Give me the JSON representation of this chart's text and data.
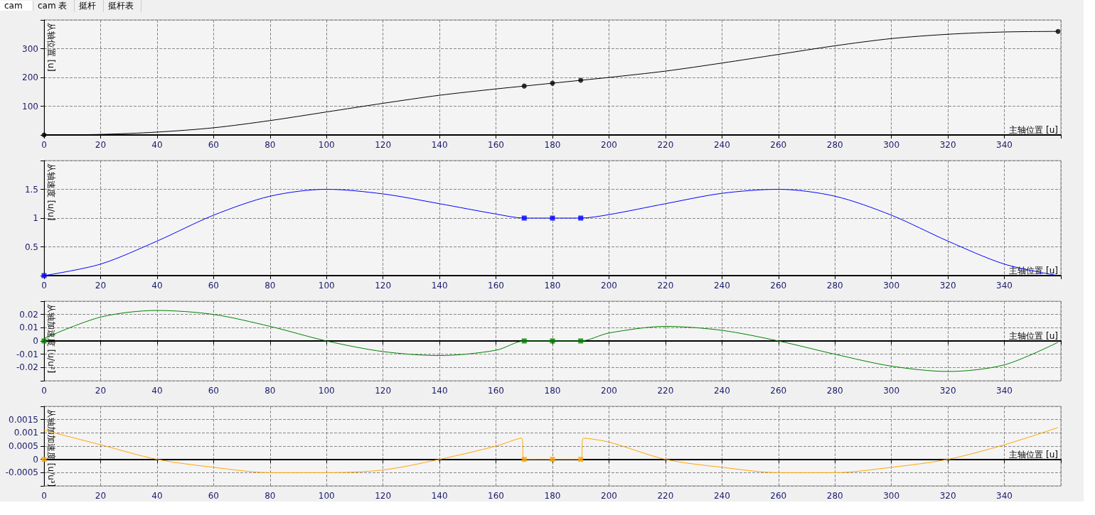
{
  "chart_data": [
    {
      "type": "line",
      "annotations": [
        "cam",
        "cam 表",
        "挺杆",
        "挺杆表"
      ],
      "xlabel": "主轴位置 [u]",
      "ylabel": "从轴位置 [u]",
      "xlim": [
        0,
        360
      ],
      "xticks": [
        0,
        20,
        40,
        60,
        80,
        100,
        120,
        140,
        160,
        180,
        200,
        220,
        240,
        260,
        280,
        300,
        320,
        340
      ],
      "ylim": [
        0,
        400
      ],
      "yticks": [
        100,
        200,
        300
      ],
      "grid": true,
      "series": [
        {
          "color": "#000000",
          "marker": "none",
          "x": [
            0,
            20,
            40,
            60,
            80,
            100,
            120,
            140,
            160,
            170,
            180,
            190,
            200,
            220,
            240,
            260,
            280,
            300,
            320,
            340,
            359
          ],
          "values": [
            0,
            2,
            10,
            25,
            50,
            80,
            110,
            138,
            160,
            170,
            180,
            190,
            200,
            222,
            250,
            280,
            310,
            335,
            350,
            358,
            360
          ]
        },
        {
          "type": "scatter",
          "color": "#000000",
          "marker": "circle",
          "x": [
            0,
            170,
            180,
            190,
            359
          ],
          "values": [
            0,
            170,
            180,
            190,
            360
          ]
        }
      ]
    },
    {
      "type": "line",
      "xlabel": "主轴位置 [u]",
      "ylabel": "从轴速度 [u/u]",
      "xlim": [
        0,
        360
      ],
      "xticks": [
        0,
        20,
        40,
        60,
        80,
        100,
        120,
        140,
        160,
        180,
        200,
        220,
        240,
        260,
        280,
        300,
        320,
        340
      ],
      "ylim": [
        0,
        2
      ],
      "yticks": [
        0.5,
        1,
        1.5
      ],
      "grid": true,
      "series": [
        {
          "color": "#0000ff",
          "marker": "none",
          "x": [
            0,
            20,
            40,
            60,
            80,
            100,
            120,
            140,
            160,
            170,
            180,
            190,
            200,
            220,
            240,
            260,
            280,
            300,
            320,
            340,
            359
          ],
          "values": [
            0,
            0.2,
            0.6,
            1.05,
            1.38,
            1.5,
            1.42,
            1.25,
            1.07,
            1,
            1,
            1,
            1.06,
            1.25,
            1.43,
            1.5,
            1.38,
            1.05,
            0.6,
            0.2,
            0
          ]
        },
        {
          "type": "scatter",
          "color": "#0000ff",
          "marker": "square",
          "x": [
            0,
            170,
            180,
            190
          ],
          "values": [
            0,
            1,
            1,
            1
          ]
        }
      ]
    },
    {
      "type": "line",
      "xlabel": "主轴位置 [u]",
      "ylabel": "从轴加速度 [u/u²]",
      "xlim": [
        0,
        360
      ],
      "xticks": [
        0,
        20,
        40,
        60,
        80,
        100,
        120,
        140,
        160,
        180,
        200,
        220,
        240,
        260,
        280,
        300,
        320,
        340
      ],
      "ylim": [
        -0.03,
        0.03
      ],
      "yticks": [
        -0.02,
        -0.01,
        0,
        0.01,
        0.02
      ],
      "grid": true,
      "series": [
        {
          "color": "#008000",
          "marker": "none",
          "x": [
            0,
            20,
            40,
            60,
            80,
            100,
            120,
            140,
            160,
            170,
            180,
            190,
            200,
            220,
            240,
            260,
            280,
            300,
            320,
            340,
            359
          ],
          "values": [
            0.002,
            0.018,
            0.023,
            0.02,
            0.011,
            0,
            -0.008,
            -0.011,
            -0.007,
            0,
            0,
            0,
            0.006,
            0.011,
            0.008,
            0,
            -0.01,
            -0.019,
            -0.023,
            -0.018,
            -0.001
          ]
        },
        {
          "type": "scatter",
          "color": "#008000",
          "marker": "square",
          "x": [
            0,
            170,
            180,
            190
          ],
          "values": [
            0,
            0,
            0,
            0
          ]
        }
      ]
    },
    {
      "type": "line",
      "xlabel": "主轴位置 [u]",
      "ylabel": "从轴加加速度 [u/u³]",
      "xlim": [
        0,
        360
      ],
      "xticks": [
        0,
        20,
        40,
        60,
        80,
        100,
        120,
        140,
        160,
        180,
        200,
        220,
        240,
        260,
        280,
        300,
        320,
        340
      ],
      "ylim": [
        -0.001,
        0.002
      ],
      "yticks": [
        -0.0005,
        0,
        0.0005,
        0.001,
        0.0015
      ],
      "grid": true,
      "series": [
        {
          "color": "#ffa500",
          "marker": "none",
          "x": [
            0,
            20,
            40,
            60,
            80,
            100,
            120,
            140,
            160,
            169,
            170,
            180,
            190,
            191,
            200,
            220,
            240,
            260,
            280,
            300,
            320,
            340,
            359
          ],
          "values": [
            0.0011,
            0.00055,
            0,
            -0.0003,
            -0.0005,
            -0.0005,
            -0.0004,
            0,
            0.0005,
            0.0008,
            0,
            0,
            0,
            0.0008,
            0.00065,
            0,
            -0.0003,
            -0.0005,
            -0.0005,
            -0.0003,
            0,
            0.00055,
            0.0012
          ]
        },
        {
          "type": "scatter",
          "color": "#ffa500",
          "marker": "square",
          "x": [
            0,
            170,
            180,
            190
          ],
          "values": [
            0,
            0,
            0,
            0
          ]
        }
      ]
    }
  ]
}
